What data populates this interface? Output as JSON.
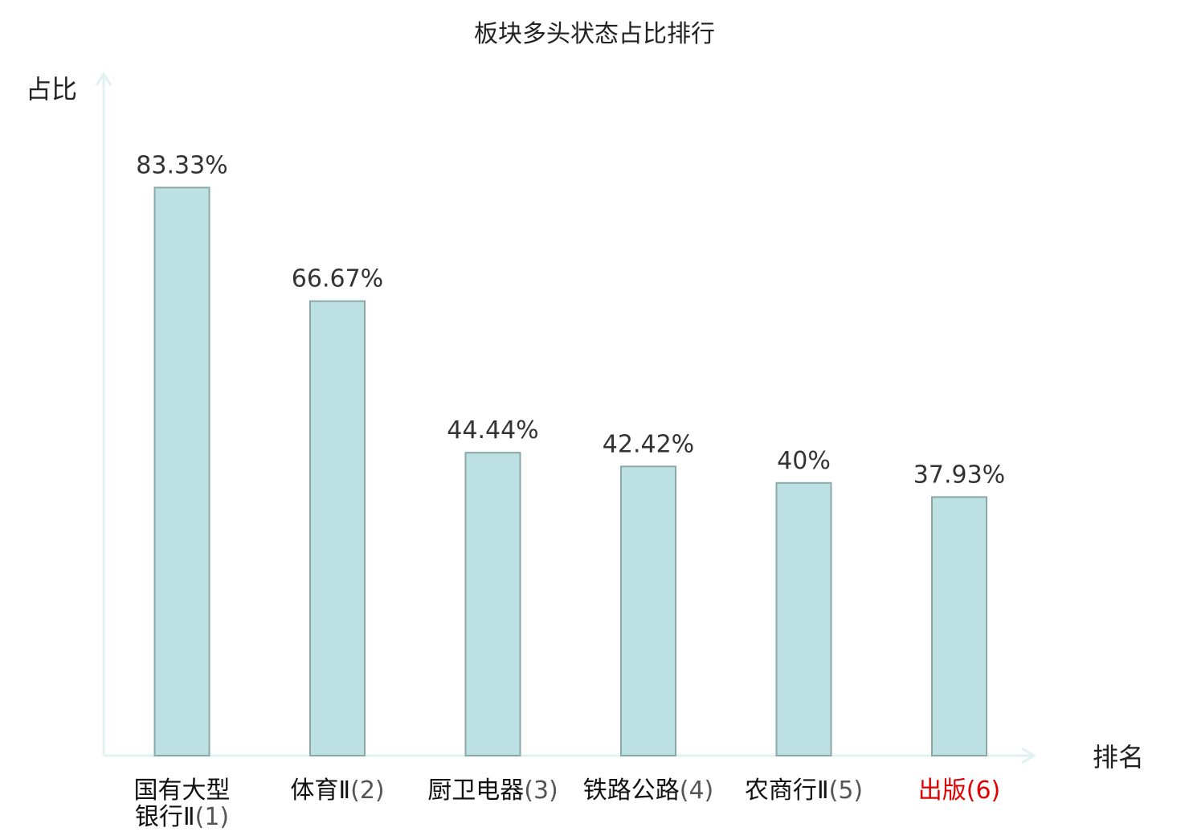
{
  "chart_data": {
    "type": "bar",
    "title": "板块多头状态占比排行",
    "ylabel": "占比",
    "xlabel": "排名",
    "ylim": [
      0,
      100
    ],
    "grid": false,
    "legend": "none",
    "categories": [
      {
        "name_lines": [
          "国有大型",
          "银行Ⅱ"
        ],
        "rank": "(1)",
        "highlight": false
      },
      {
        "name_lines": [
          "体育Ⅱ"
        ],
        "rank": "(2)",
        "highlight": false
      },
      {
        "name_lines": [
          "厨卫电器"
        ],
        "rank": "(3)",
        "highlight": false
      },
      {
        "name_lines": [
          "铁路公路"
        ],
        "rank": "(4)",
        "highlight": false
      },
      {
        "name_lines": [
          "农商行Ⅱ"
        ],
        "rank": "(5)",
        "highlight": false
      },
      {
        "name_lines": [
          "出版"
        ],
        "rank": "(6)",
        "highlight": true
      }
    ],
    "values": [
      83.33,
      66.67,
      44.44,
      42.42,
      40,
      37.93
    ],
    "value_labels": [
      "83.33%",
      "66.67%",
      "44.44%",
      "42.42%",
      "40%",
      "37.93%"
    ],
    "colors": {
      "bar_fill": "#bde0e2",
      "bar_stroke": "#8aa7aa",
      "axis": "#dff2ef",
      "highlight_label": "#e00000"
    }
  }
}
